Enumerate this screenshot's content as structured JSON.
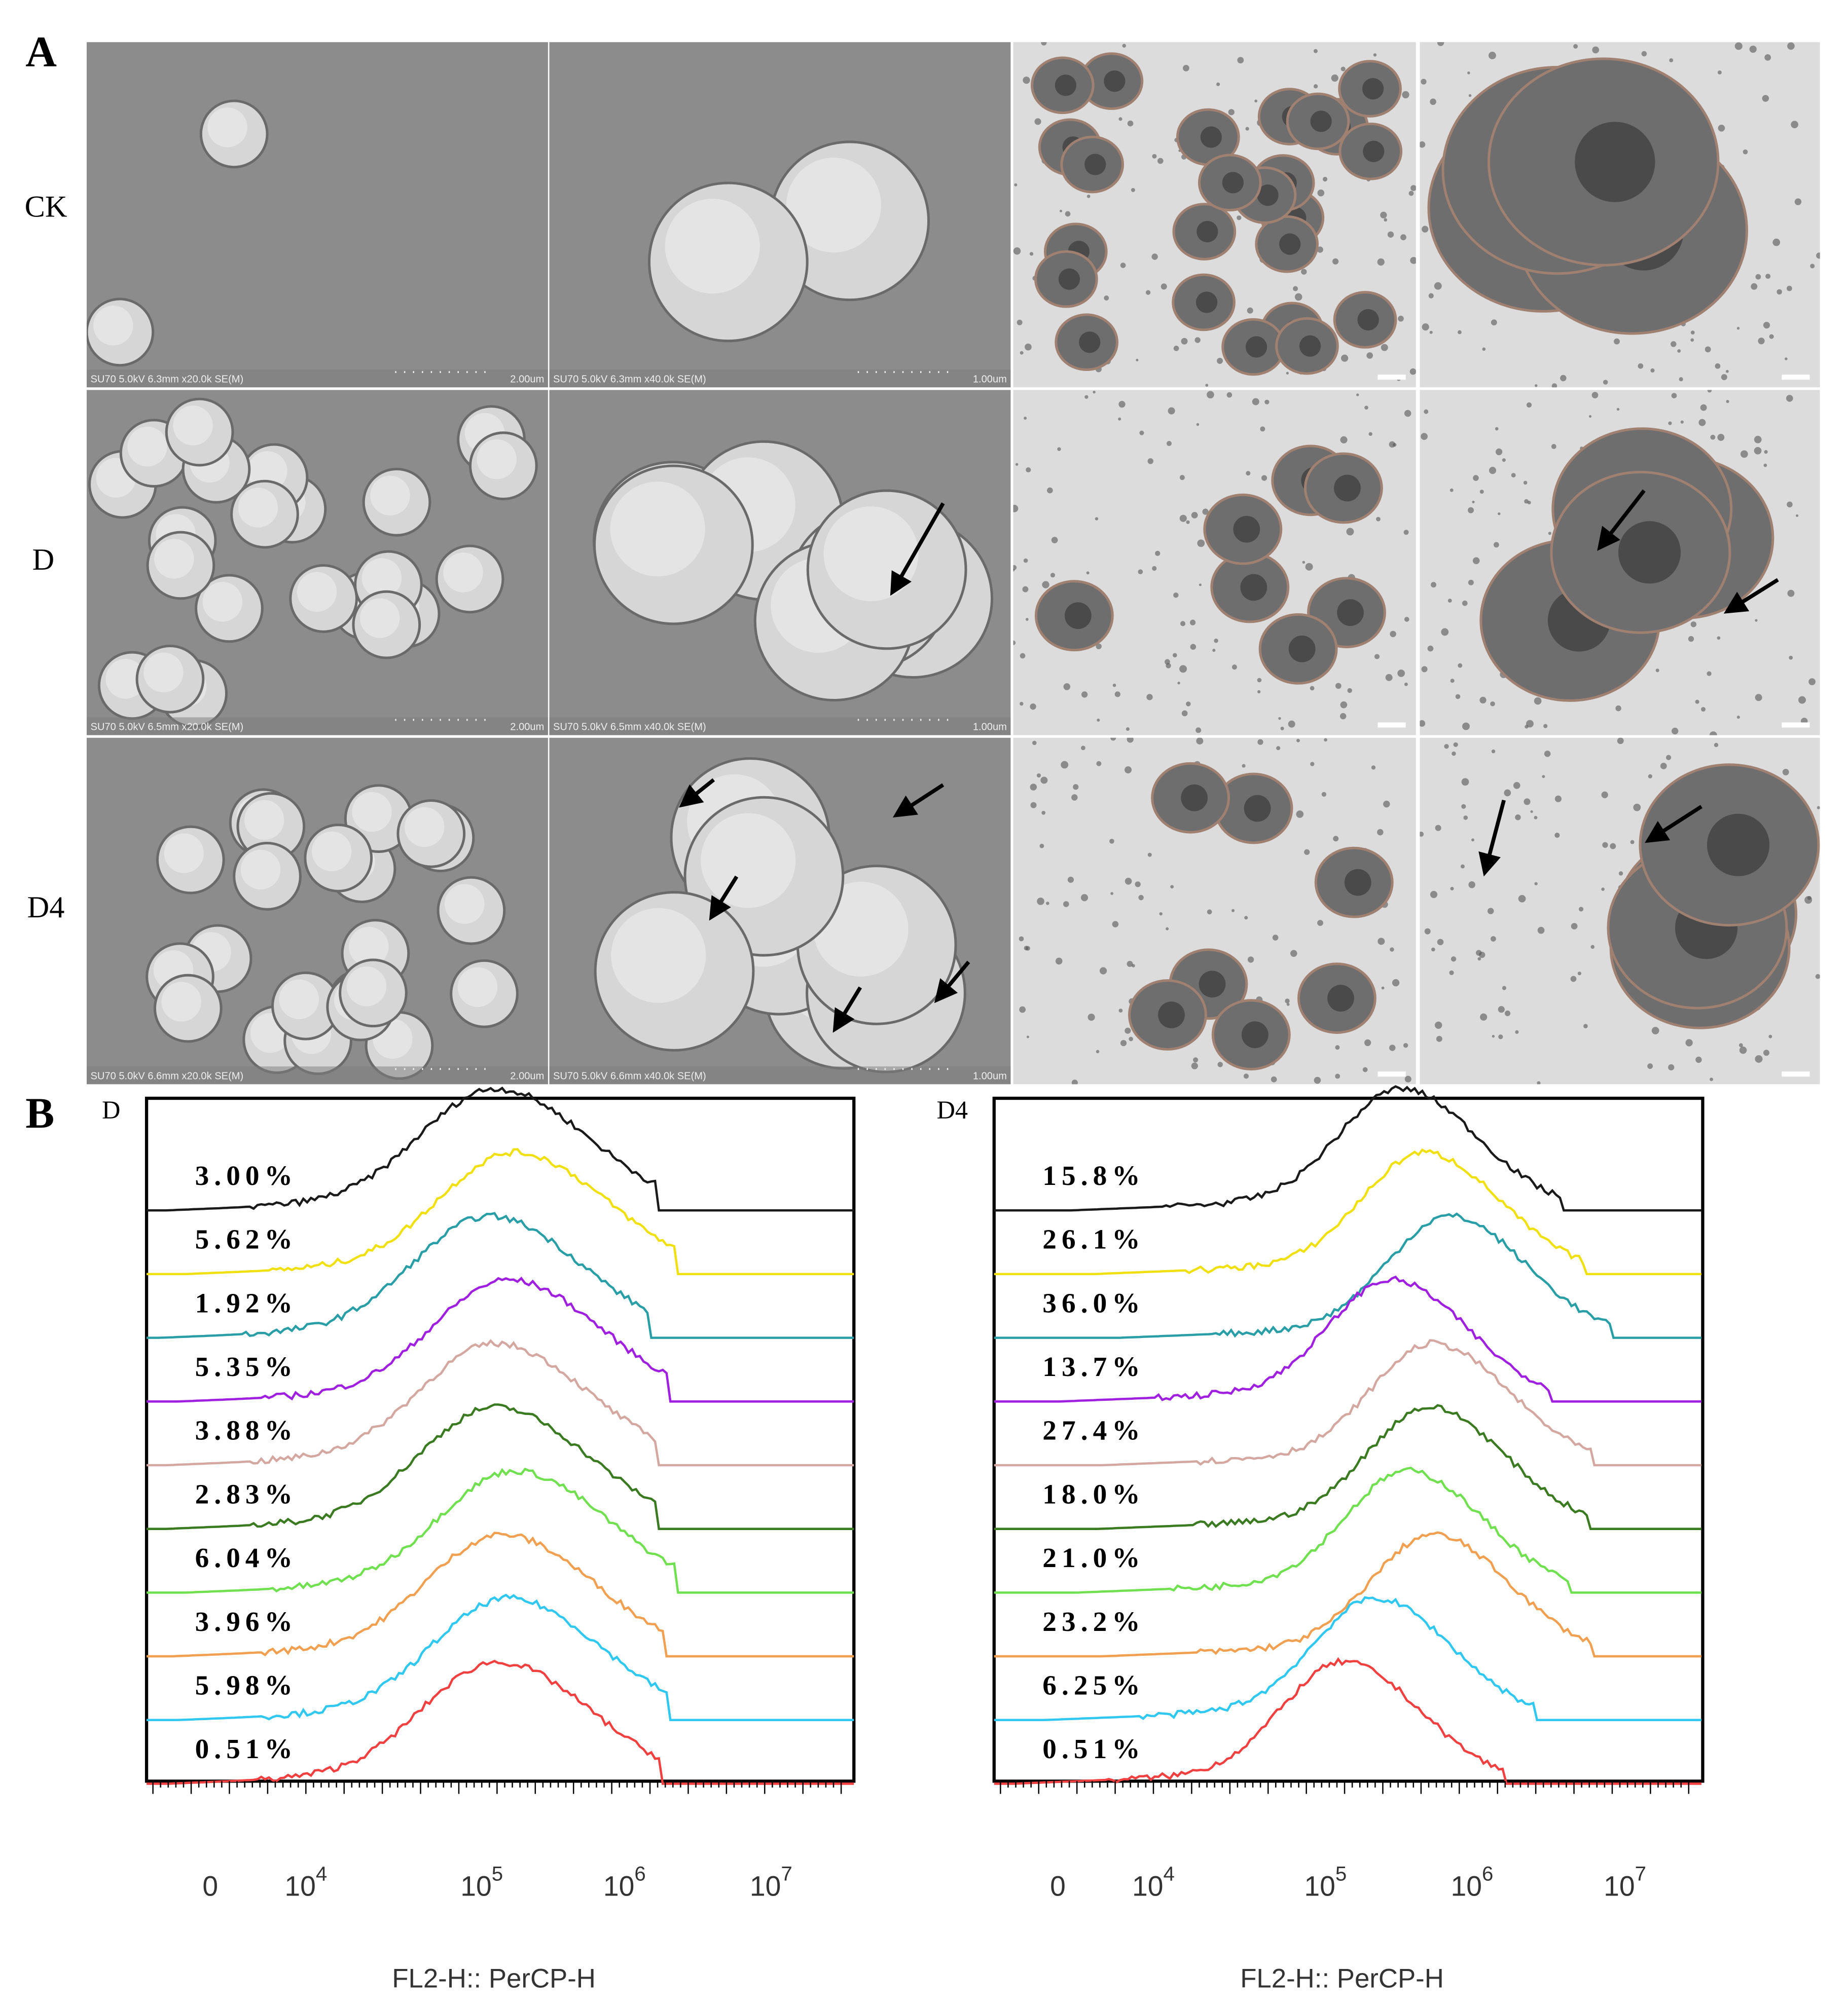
{
  "panel_labels": [
    "A",
    "B"
  ],
  "row_labels": [
    "CK",
    "D",
    "D4"
  ],
  "sem_captions": [
    [
      {
        "info": "SU70 5.0kV 6.3mm x20.0k SE(M)",
        "scale": "2.00um"
      },
      {
        "info": "SU70 5.0kV 6.3mm x40.0k SE(M)",
        "scale": "1.00um"
      }
    ],
    [
      {
        "info": "SU70 5.0kV 6.5mm x20.0k SE(M)",
        "scale": "2.00um"
      },
      {
        "info": "SU70 5.0kV 6.5mm x40.0k SE(M)",
        "scale": "1.00um"
      }
    ],
    [
      {
        "info": "SU70 5.0kV 6.6mm x20.0k SE(M)",
        "scale": "2.00um"
      },
      {
        "info": "SU70 5.0kV 6.6mm x40.0k SE(M)",
        "scale": "1.00um"
      }
    ]
  ],
  "histograms": [
    {
      "label": "D",
      "percentages": [
        "3.00%",
        "5.62%",
        "1.92%",
        "5.35%",
        "3.88%",
        "2.83%",
        "6.04%",
        "3.96%",
        "5.98%",
        "0.51%"
      ],
      "colors": [
        "#1a1a1a",
        "#f0e010",
        "#2a9ea6",
        "#a020e0",
        "#d4a8a0",
        "#3a7a20",
        "#70e050",
        "#f0a050",
        "#30c8f0",
        "#f04040"
      ],
      "x_ticks": [
        {
          "base": "0"
        },
        {
          "base": "10",
          "sup": "4"
        },
        {
          "base": "10",
          "sup": "5"
        },
        {
          "base": "10",
          "sup": "6"
        },
        {
          "base": "10",
          "sup": "7"
        }
      ],
      "x_label": "FL2-H:: PerCP-H"
    },
    {
      "label": "D4",
      "percentages": [
        "15.8%",
        "26.1%",
        "36.0%",
        "13.7%",
        "27.4%",
        "18.0%",
        "21.0%",
        "23.2%",
        "6.25%",
        "0.51%"
      ],
      "colors": [
        "#1a1a1a",
        "#f0e010",
        "#2a9ea6",
        "#a020e0",
        "#d4a8a0",
        "#3a7a20",
        "#70e050",
        "#f0a050",
        "#30c8f0",
        "#f04040"
      ],
      "x_ticks": [
        {
          "base": "0"
        },
        {
          "base": "10",
          "sup": "4"
        },
        {
          "base": "10",
          "sup": "5"
        },
        {
          "base": "10",
          "sup": "6"
        },
        {
          "base": "10",
          "sup": "7"
        }
      ],
      "x_label": "FL2-H:: PerCP-H"
    }
  ]
}
